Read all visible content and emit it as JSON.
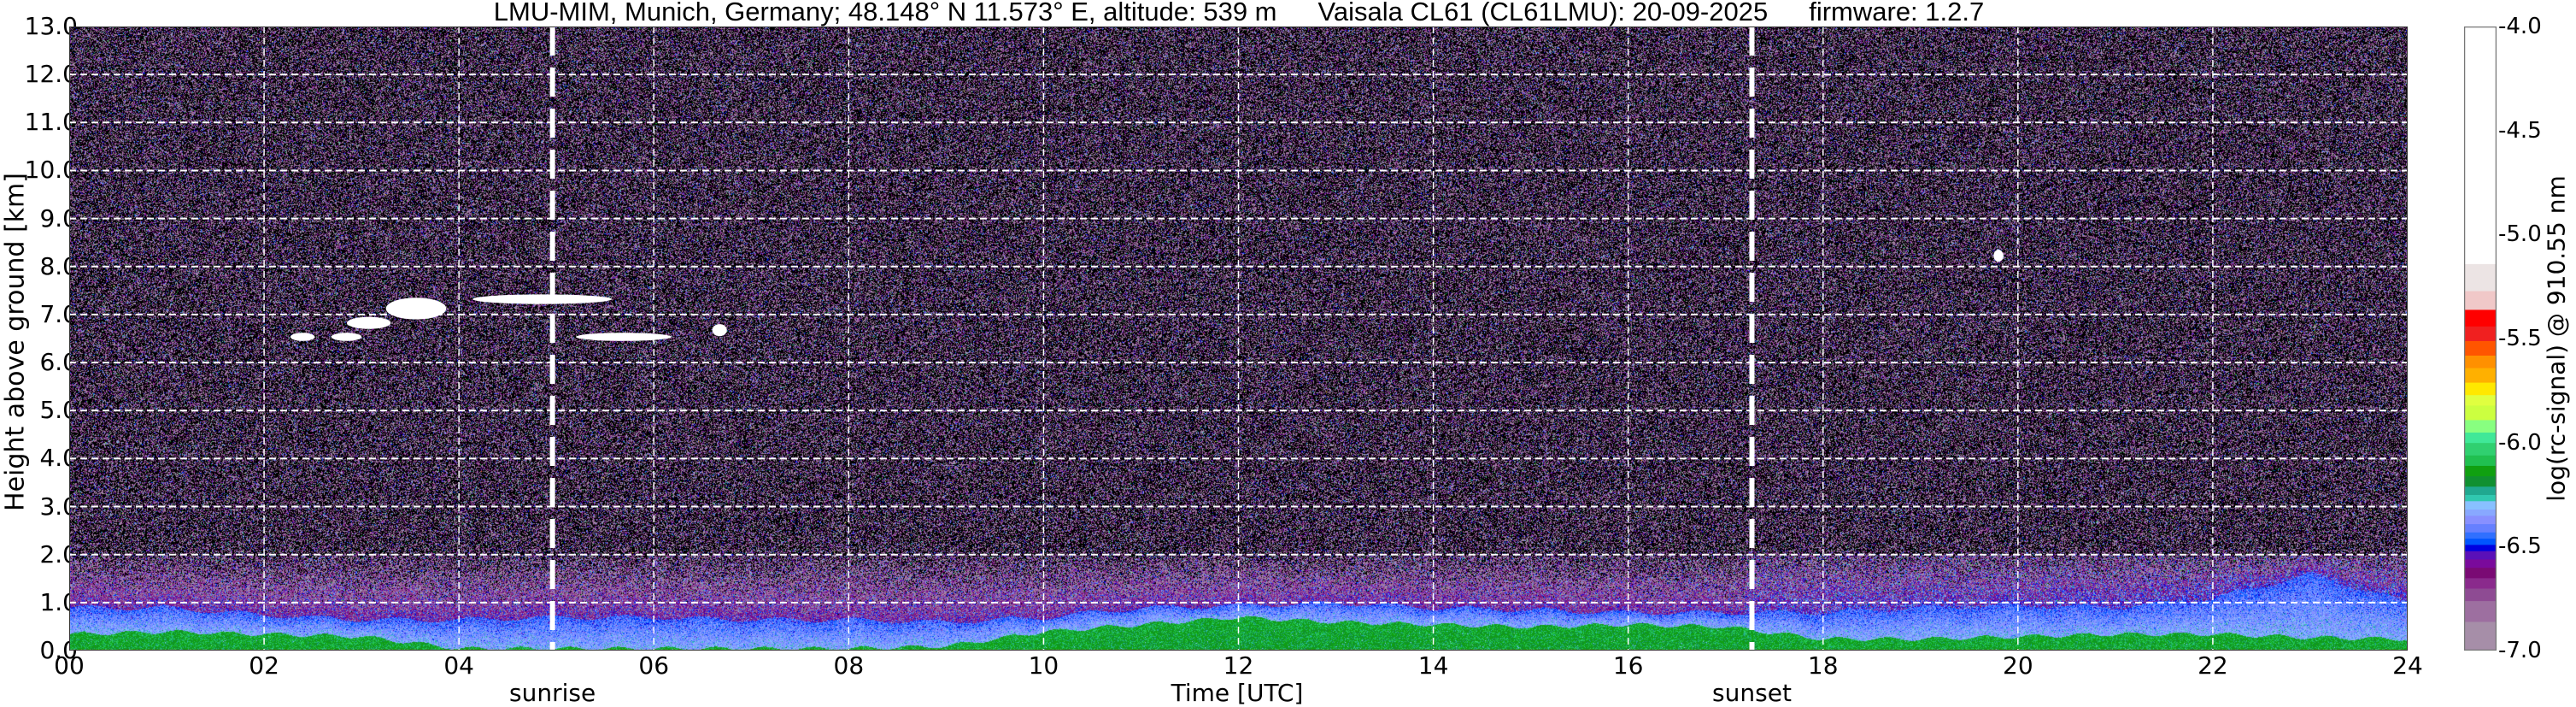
{
  "chart_data": {
    "type": "heatmap",
    "title": {
      "site": "LMU-MIM, Munich, Germany; 48.148° N 11.573° E, altitude: 539 m",
      "instrument": "Vaisala CL61 (CL61LMU): 20-09-2025",
      "firmware": "firmware: 1.2.7"
    },
    "xlabel": "Time [UTC]",
    "ylabel": "Height above ground [km]",
    "xlim": [
      0,
      24
    ],
    "ylim": [
      0,
      13
    ],
    "grid": true,
    "xticks": [
      {
        "value": 0,
        "label": "00"
      },
      {
        "value": 2,
        "label": "02"
      },
      {
        "value": 4,
        "label": "04"
      },
      {
        "value": 6,
        "label": "06"
      },
      {
        "value": 8,
        "label": "08"
      },
      {
        "value": 10,
        "label": "10"
      },
      {
        "value": 12,
        "label": "12"
      },
      {
        "value": 14,
        "label": "14"
      },
      {
        "value": 16,
        "label": "16"
      },
      {
        "value": 18,
        "label": "18"
      },
      {
        "value": 20,
        "label": "20"
      },
      {
        "value": 22,
        "label": "22"
      },
      {
        "value": 24,
        "label": "24"
      }
    ],
    "yticks": [
      {
        "value": 0,
        "label": "0.0"
      },
      {
        "value": 1,
        "label": "1.0"
      },
      {
        "value": 2,
        "label": "2.0"
      },
      {
        "value": 3,
        "label": "3.0"
      },
      {
        "value": 4,
        "label": "4.0"
      },
      {
        "value": 5,
        "label": "5.0"
      },
      {
        "value": 6,
        "label": "6.0"
      },
      {
        "value": 7,
        "label": "7.0"
      },
      {
        "value": 8,
        "label": "8.0"
      },
      {
        "value": 9,
        "label": "9.0"
      },
      {
        "value": 10,
        "label": "10.0"
      },
      {
        "value": 11,
        "label": "11.0"
      },
      {
        "value": 12,
        "label": "12.0"
      },
      {
        "value": 13,
        "label": "13.0"
      }
    ],
    "annotations": [
      {
        "label": "sunrise",
        "time_h": 4.96
      },
      {
        "label": "sunset",
        "time_h": 17.27
      }
    ],
    "colorbar": {
      "label": "log(rc-signal) @ 910.55 nm",
      "range": [
        -7.0,
        -4.0
      ],
      "ticks": [
        {
          "value": -4.0,
          "label": "-4.0"
        },
        {
          "value": -4.5,
          "label": "-4.5"
        },
        {
          "value": -5.0,
          "label": "-5.0"
        },
        {
          "value": -5.5,
          "label": "-5.5"
        },
        {
          "value": -6.0,
          "label": "-6.0"
        },
        {
          "value": -6.5,
          "label": "-6.5"
        },
        {
          "value": -7.0,
          "label": "-7.0"
        }
      ],
      "levels": [
        {
          "from": -7.0,
          "to": -6.86,
          "color": "#a68ea8"
        },
        {
          "from": -6.86,
          "to": -6.76,
          "color": "#9d6fa0"
        },
        {
          "from": -6.76,
          "to": -6.7,
          "color": "#8e4b93"
        },
        {
          "from": -6.7,
          "to": -6.65,
          "color": "#8a2a8c"
        },
        {
          "from": -6.65,
          "to": -6.6,
          "color": "#7a0a74"
        },
        {
          "from": -6.6,
          "to": -6.56,
          "color": "#7a0a9c"
        },
        {
          "from": -6.56,
          "to": -6.52,
          "color": "#5a10b8"
        },
        {
          "from": -6.52,
          "to": -6.49,
          "color": "#0000e0"
        },
        {
          "from": -6.49,
          "to": -6.46,
          "color": "#0055ff"
        },
        {
          "from": -6.46,
          "to": -6.43,
          "color": "#3070ff"
        },
        {
          "from": -6.43,
          "to": -6.39,
          "color": "#6680ff"
        },
        {
          "from": -6.39,
          "to": -6.35,
          "color": "#8890ff"
        },
        {
          "from": -6.35,
          "to": -6.32,
          "color": "#88a8ff"
        },
        {
          "from": -6.32,
          "to": -6.28,
          "color": "#88c0ff"
        },
        {
          "from": -6.28,
          "to": -6.25,
          "color": "#30c8b0"
        },
        {
          "from": -6.25,
          "to": -6.21,
          "color": "#20a890"
        },
        {
          "from": -6.21,
          "to": -6.16,
          "color": "#109030"
        },
        {
          "from": -6.16,
          "to": -6.11,
          "color": "#10a010"
        },
        {
          "from": -6.11,
          "to": -6.06,
          "color": "#20c050"
        },
        {
          "from": -6.06,
          "to": -6.0,
          "color": "#30d070"
        },
        {
          "from": -6.0,
          "to": -5.95,
          "color": "#40e898"
        },
        {
          "from": -5.95,
          "to": -5.89,
          "color": "#88ff80"
        },
        {
          "from": -5.89,
          "to": -5.82,
          "color": "#ccff40"
        },
        {
          "from": -5.82,
          "to": -5.77,
          "color": "#e0ff40"
        },
        {
          "from": -5.77,
          "to": -5.71,
          "color": "#ffe800"
        },
        {
          "from": -5.71,
          "to": -5.64,
          "color": "#ffb000"
        },
        {
          "from": -5.64,
          "to": -5.58,
          "color": "#ff9000"
        },
        {
          "from": -5.58,
          "to": -5.51,
          "color": "#ff5500"
        },
        {
          "from": -5.51,
          "to": -5.44,
          "color": "#f02020"
        },
        {
          "from": -5.44,
          "to": -5.36,
          "color": "#ff0000"
        },
        {
          "from": -5.36,
          "to": -5.27,
          "color": "#f0c8c8"
        },
        {
          "from": -5.27,
          "to": -5.14,
          "color": "#ece4e4"
        },
        {
          "from": -5.14,
          "to": -4.0,
          "color": "#ffffff"
        }
      ],
      "below_range_color": "#000000"
    },
    "features": {
      "hours": [
        0,
        1,
        2,
        3,
        4,
        5,
        6,
        7,
        8,
        9,
        10,
        11,
        12,
        13,
        14,
        15,
        16,
        17,
        18,
        19,
        20,
        21,
        22,
        23,
        24
      ],
      "boundary_layer_top_km": [
        0.9,
        0.9,
        0.75,
        0.65,
        0.65,
        0.7,
        0.7,
        0.65,
        0.65,
        0.6,
        0.7,
        0.9,
        0.95,
        1.0,
        0.9,
        0.85,
        0.8,
        0.8,
        0.8,
        0.9,
        0.95,
        0.9,
        1.1,
        1.6,
        1.0
      ],
      "near_surface_layer_top_km": [
        0.35,
        0.4,
        0.35,
        0.3,
        0.05,
        0.05,
        0.05,
        0.05,
        0.05,
        0.1,
        0.4,
        0.55,
        0.7,
        0.6,
        0.55,
        0.5,
        0.55,
        0.5,
        0.25,
        0.25,
        0.3,
        0.35,
        0.35,
        0.28,
        0.25
      ],
      "residual_layer_top_km": [
        2.0,
        2.0,
        2.0,
        2.0,
        2.0,
        2.0,
        2.0,
        2.0,
        2.0,
        2.0,
        2.0,
        2.0,
        2.0,
        2.0,
        2.0,
        2.0,
        2.0,
        2.0,
        2.0,
        2.0,
        2.0,
        2.0,
        2.0,
        2.0,
        2.0
      ],
      "clouds": [
        {
          "start_h": 2.27,
          "end_h": 2.52,
          "base_km": 6.45,
          "top_km": 6.62
        },
        {
          "start_h": 2.69,
          "end_h": 3.0,
          "base_km": 6.45,
          "top_km": 6.62
        },
        {
          "start_h": 2.85,
          "end_h": 3.3,
          "base_km": 6.7,
          "top_km": 6.95
        },
        {
          "start_h": 3.25,
          "end_h": 3.87,
          "base_km": 6.9,
          "top_km": 7.35
        },
        {
          "start_h": 4.14,
          "end_h": 5.57,
          "base_km": 7.22,
          "top_km": 7.42
        },
        {
          "start_h": 5.2,
          "end_h": 6.18,
          "base_km": 6.45,
          "top_km": 6.62
        },
        {
          "start_h": 6.6,
          "end_h": 6.75,
          "base_km": 6.55,
          "top_km": 6.8
        },
        {
          "start_h": 19.75,
          "end_h": 19.85,
          "base_km": 8.1,
          "top_km": 8.35
        }
      ]
    }
  }
}
